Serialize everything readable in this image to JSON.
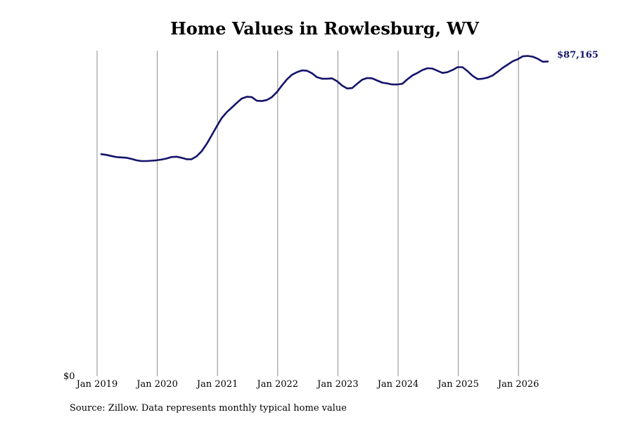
{
  "chart_data": {
    "type": "line",
    "title": "Home Values in Rowlesburg, WV",
    "source": "Source: Zillow. Data represents monthly typical home value",
    "y_tick_label": "$0",
    "end_label": "$87,165",
    "x_ticks": [
      "Jan 2019",
      "Jan 2020",
      "Jan 2021",
      "Jan 2022",
      "Jan 2023",
      "Jan 2024",
      "Jan 2025",
      "Jan 2026"
    ],
    "ylim": [
      0,
      89000
    ],
    "grid": "vertical",
    "line_color": "#14146b",
    "series": [
      {
        "x": [
          "2019-01",
          "2019-02",
          "2019-03",
          "2019-04",
          "2019-05",
          "2019-06",
          "2019-07",
          "2019-08",
          "2019-09",
          "2019-10",
          "2019-11",
          "2019-12",
          "2020-01",
          "2020-02",
          "2020-03",
          "2020-04",
          "2020-05",
          "2020-06",
          "2020-07",
          "2020-08",
          "2020-09",
          "2020-10",
          "2020-11",
          "2020-12",
          "2021-01",
          "2021-02",
          "2021-03",
          "2021-04",
          "2021-05",
          "2021-06",
          "2021-07",
          "2021-08",
          "2021-09",
          "2021-10",
          "2021-11",
          "2021-12",
          "2022-01",
          "2022-02",
          "2022-03",
          "2022-04",
          "2022-05",
          "2022-06",
          "2022-07",
          "2022-08",
          "2022-09",
          "2022-10",
          "2022-11",
          "2022-12",
          "2023-01",
          "2023-02",
          "2023-03",
          "2023-04",
          "2023-05",
          "2023-06",
          "2023-07",
          "2023-08",
          "2023-09",
          "2023-10",
          "2023-11",
          "2023-12",
          "2024-01",
          "2024-02",
          "2024-03",
          "2024-04",
          "2024-05",
          "2024-06",
          "2024-07",
          "2024-08",
          "2024-09",
          "2024-10",
          "2024-11",
          "2024-12",
          "2025-01",
          "2025-02",
          "2025-03",
          "2025-04",
          "2025-05",
          "2025-06",
          "2025-07",
          "2025-08",
          "2025-09",
          "2025-10",
          "2025-11",
          "2025-12",
          "2026-01",
          "2026-02",
          "2026-03",
          "2026-04",
          "2026-05",
          "2026-06"
        ],
        "y": [
          61500,
          61300,
          61000,
          60700,
          60600,
          60500,
          60200,
          59800,
          59600,
          59600,
          59700,
          59800,
          60000,
          60300,
          60700,
          60800,
          60500,
          60100,
          60100,
          60900,
          62300,
          64300,
          66700,
          69200,
          71500,
          73100,
          74400,
          75700,
          76900,
          77400,
          77300,
          76300,
          76200,
          76500,
          77300,
          78700,
          80500,
          82200,
          83500,
          84200,
          84700,
          84600,
          83900,
          82800,
          82400,
          82400,
          82500,
          81700,
          80500,
          79700,
          79800,
          81000,
          82100,
          82600,
          82500,
          81900,
          81300,
          81100,
          80800,
          80800,
          81000,
          82200,
          83300,
          84000,
          84800,
          85300,
          85200,
          84600,
          84000,
          84200,
          84800,
          85600,
          85600,
          84500,
          83200,
          82300,
          82400,
          82700,
          83300,
          84300,
          85400,
          86300,
          87200,
          87800,
          88600,
          88700,
          88500,
          87900,
          87100,
          87165
        ]
      }
    ]
  }
}
